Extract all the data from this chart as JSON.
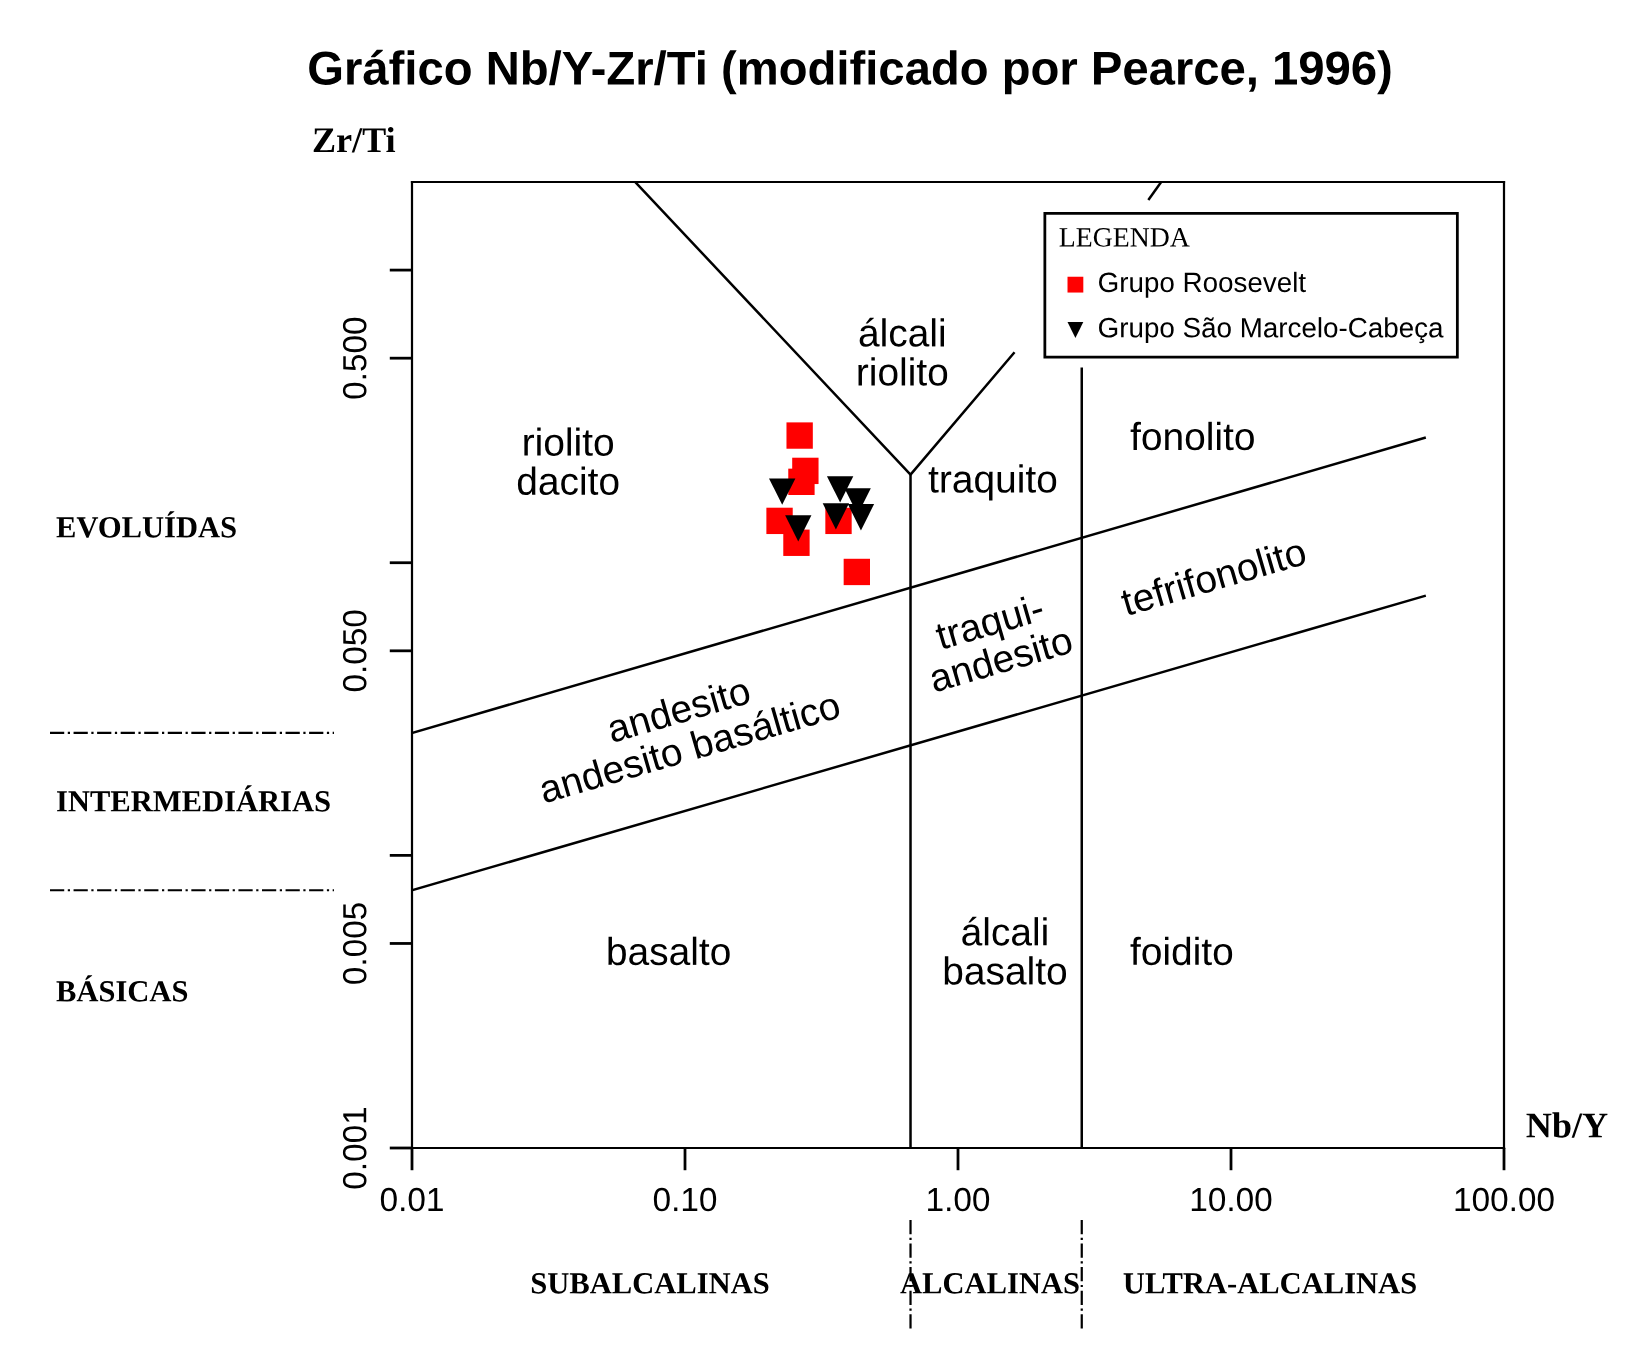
{
  "chart_data": {
    "type": "scatter",
    "title": "Gráfico Nb/Y-Zr/Ti (modificado por Pearce, 1996)",
    "xlabel": "Nb/Y",
    "ylabel": "Zr/Ti",
    "legend_title": "LEGENDA",
    "legend": "top right",
    "grid": false,
    "log": "xy",
    "xlim": [
      0.01,
      100
    ],
    "ylim": [
      0.001,
      2
    ],
    "xticks": [
      {
        "value": 0.01,
        "label": "0.01"
      },
      {
        "value": 0.1,
        "label": "0.10"
      },
      {
        "value": 1,
        "label": "1.00"
      },
      {
        "value": 10,
        "label": "10.00"
      },
      {
        "value": 100,
        "label": "100.00"
      }
    ],
    "yticks": [
      0.001,
      0.005,
      {
        "value": 0.01,
        "label": null
      },
      {
        "value": 0.05,
        "label": "0.050"
      },
      {
        "value": 0.1,
        "label": null
      },
      {
        "value": 0.5,
        "label": "0.500"
      },
      {
        "value": 1,
        "label": null
      }
    ],
    "series": [
      {
        "name": "Grupo Roosevelt",
        "marker": "square",
        "color": "#ff0000",
        "x": [
          0.263,
          0.276,
          0.267,
          0.222,
          0.256,
          0.365,
          0.426
        ],
        "values": [
          0.272,
          0.206,
          0.189,
          0.139,
          0.117,
          0.139,
          0.093
        ]
      },
      {
        "name": "Grupo São Marcelo-Cabeça",
        "marker": "triangle",
        "color": "#000000",
        "x": [
          0.227,
          0.37,
          0.429,
          0.357,
          0.441,
          0.26
        ],
        "values": [
          0.175,
          0.178,
          0.162,
          0.144,
          0.143,
          0.131
        ]
      },
      {
        "type": "line",
        "marker": "none",
        "color": "#000000",
        "x": [
          0.0657,
          0.67,
          1.6
        ],
        "values": [
          2,
          0.2,
          0.52
        ]
      },
      {
        "type": "line",
        "marker": "none",
        "color": "#000000",
        "x": [
          5.01,
          5.55
        ],
        "values": [
          1.75,
          2
        ]
      },
      {
        "type": "line",
        "marker": "none",
        "color": "#000000",
        "x": [
          0.67,
          0.67
        ],
        "values": [
          0.001,
          0.2
        ]
      },
      {
        "type": "line",
        "marker": "none",
        "color": "#000000",
        "x": [
          2.84,
          2.84
        ],
        "values": [
          0.001,
          0.46
        ]
      },
      {
        "type": "line",
        "marker": "none",
        "color": "#000000",
        "x": [
          0.01,
          51.2
        ],
        "values": [
          0.0262,
          0.267
        ]
      },
      {
        "type": "line",
        "marker": "none",
        "color": "#000000",
        "x": [
          0.01,
          51.2
        ],
        "values": [
          0.0076,
          0.077
        ]
      }
    ],
    "annotations": [
      "riolito\ndacito",
      "álcali\nriolito",
      "traquito",
      "fonolito",
      "andesito\nandesito basáltico",
      "traqui-\nandesito",
      "tefrifonolito",
      "basalto",
      "álcali\nbasalto",
      "foidito",
      "EVOLUÍDAS",
      "INTERMEDIÁRIAS",
      "BÁSICAS",
      "SUBALCALINAS",
      "ALCALINAS",
      "ULTRA-ALCALINAS"
    ]
  }
}
